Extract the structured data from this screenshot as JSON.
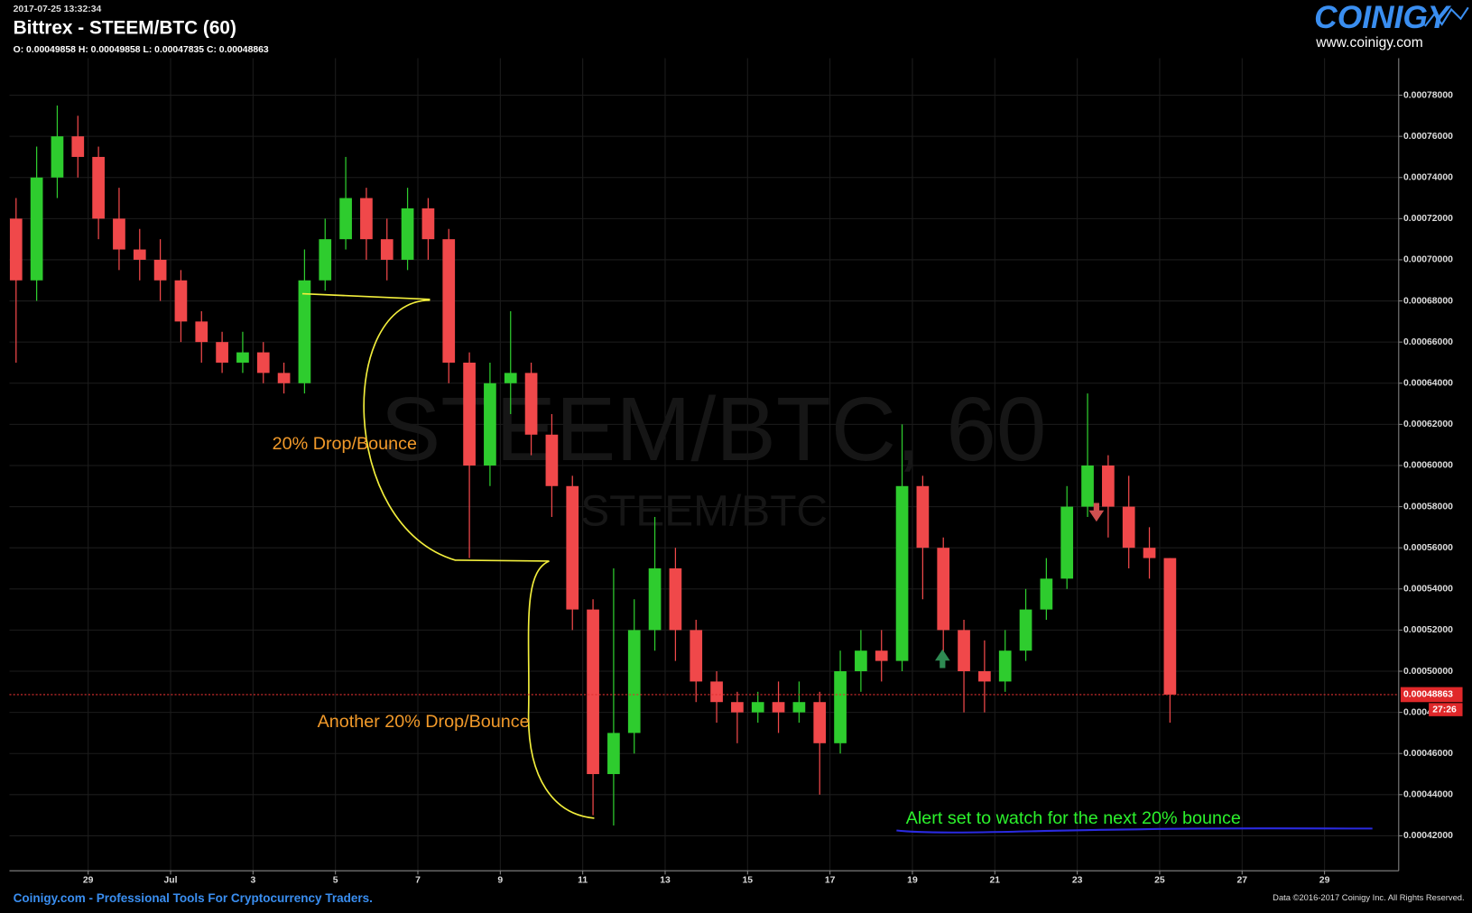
{
  "header": {
    "timestamp": "2017-07-25 13:32:34",
    "title": "Bittrex - STEEM/BTC (60)",
    "ohlc": "O: 0.00049858 H: 0.00049858 L: 0.00047835 C: 0.00048863",
    "logo": "COINIGY",
    "logo_url": "www.coinigy.com"
  },
  "watermark": {
    "main": "STEEM/BTC, 60",
    "sub": "STEEM/BTC"
  },
  "annotations": [
    "20% Drop/Bounce",
    "Another 20% Drop/Bounce",
    "Alert set to watch for the next 20% bounce"
  ],
  "footer": {
    "left": "Coinigy.com - Professional Tools For Cryptocurrency Traders.",
    "right": "Data ©2016-2017 Coinigy Inc. All Rights Reserved."
  },
  "chart_data": {
    "type": "candlestick",
    "color_up": "#2ecc2e",
    "color_down": "#f0484a",
    "x": [
      27.25,
      27.75,
      28.25,
      28.75,
      29.25,
      29.75,
      30.25,
      30.75,
      31.25,
      31.75,
      32.25,
      32.75,
      33.25,
      33.75,
      34.25,
      34.75,
      35.25,
      35.75,
      36.25,
      36.75,
      37.25,
      37.75,
      38.25,
      38.75,
      39.25,
      39.75,
      40.25,
      40.75,
      41.25,
      41.75,
      42.25,
      42.75,
      43.25,
      43.75,
      44.25,
      44.75,
      45.25,
      45.75,
      46.25,
      46.75,
      47.25,
      47.75,
      48.25,
      48.75,
      49.25,
      49.75,
      50.25,
      50.75,
      51.25,
      51.75,
      52.25,
      52.75,
      53.25,
      53.75,
      54.25,
      54.75,
      55.25
    ],
    "open": [
      0.00072,
      0.00069,
      0.00074,
      0.00076,
      0.00075,
      0.00072,
      0.000705,
      0.0007,
      0.00069,
      0.00067,
      0.00066,
      0.00065,
      0.000655,
      0.000645,
      0.00064,
      0.00069,
      0.00071,
      0.00073,
      0.00071,
      0.0007,
      0.000725,
      0.00071,
      0.00065,
      0.0006,
      0.00064,
      0.000645,
      0.000615,
      0.00059,
      0.00053,
      0.00045,
      0.00047,
      0.00052,
      0.00055,
      0.00052,
      0.000495,
      0.000485,
      0.00048,
      0.000485,
      0.00048,
      0.000485,
      0.000465,
      0.0005,
      0.00051,
      0.000505,
      0.00059,
      0.00056,
      0.00052,
      0.0005,
      0.000495,
      0.00051,
      0.00053,
      0.000545,
      0.00058,
      0.0006,
      0.00058,
      0.00056,
      0.000555
    ],
    "high": [
      0.00073,
      0.000755,
      0.000775,
      0.00077,
      0.000755,
      0.000735,
      0.000715,
      0.00071,
      0.000695,
      0.000675,
      0.000665,
      0.000665,
      0.00066,
      0.00065,
      0.000705,
      0.00072,
      0.00075,
      0.000735,
      0.00072,
      0.000735,
      0.00073,
      0.000715,
      0.000655,
      0.00065,
      0.000675,
      0.00065,
      0.000625,
      0.000595,
      0.000535,
      0.00055,
      0.000535,
      0.000575,
      0.00056,
      0.000525,
      0.0005,
      0.00049,
      0.00049,
      0.000495,
      0.000495,
      0.00049,
      0.00051,
      0.00052,
      0.00052,
      0.00062,
      0.000595,
      0.000565,
      0.000525,
      0.000515,
      0.00052,
      0.00054,
      0.000555,
      0.00059,
      0.000635,
      0.000605,
      0.000595,
      0.00057,
      0.000555
    ],
    "low": [
      0.00065,
      0.00068,
      0.00073,
      0.00074,
      0.00071,
      0.000695,
      0.00069,
      0.00068,
      0.00066,
      0.00065,
      0.000645,
      0.000645,
      0.00064,
      0.000635,
      0.000635,
      0.000685,
      0.000705,
      0.0007,
      0.00069,
      0.000695,
      0.0007,
      0.00064,
      0.000555,
      0.00059,
      0.000625,
      0.000605,
      0.000575,
      0.00052,
      0.00043,
      0.000425,
      0.00046,
      0.00051,
      0.000505,
      0.000485,
      0.000475,
      0.000465,
      0.000475,
      0.00047,
      0.000475,
      0.00044,
      0.00046,
      0.00049,
      0.000495,
      0.0005,
      0.000535,
      0.000505,
      0.00048,
      0.00048,
      0.00049,
      0.000505,
      0.000525,
      0.00054,
      0.000575,
      0.000565,
      0.00055,
      0.000545,
      0.000475
    ],
    "close": [
      0.00069,
      0.00074,
      0.00076,
      0.00075,
      0.00072,
      0.000705,
      0.0007,
      0.00069,
      0.00067,
      0.00066,
      0.00065,
      0.000655,
      0.000645,
      0.00064,
      0.00069,
      0.00071,
      0.00073,
      0.00071,
      0.0007,
      0.000725,
      0.00071,
      0.00065,
      0.0006,
      0.00064,
      0.000645,
      0.000615,
      0.00059,
      0.00053,
      0.00045,
      0.00047,
      0.00052,
      0.00055,
      0.00052,
      0.000495,
      0.000485,
      0.00048,
      0.000485,
      0.00048,
      0.000485,
      0.000465,
      0.0005,
      0.00051,
      0.000505,
      0.00059,
      0.00056,
      0.00052,
      0.0005,
      0.000495,
      0.00051,
      0.00053,
      0.000545,
      0.00058,
      0.0006,
      0.00058,
      0.00056,
      0.000555,
      0.00048863
    ],
    "xlim": [
      27.09,
      60.8
    ],
    "xticks": [
      29,
      {
        "value": 31,
        "label": "Jul"
      },
      {
        "value": 33,
        "label": "3"
      },
      {
        "value": 35,
        "label": "5"
      },
      {
        "value": 37,
        "label": "7"
      },
      {
        "value": 39,
        "label": "9"
      },
      {
        "value": 41,
        "label": "11"
      },
      {
        "value": 43,
        "label": "13"
      },
      {
        "value": 45,
        "label": "15"
      },
      {
        "value": 47,
        "label": "17"
      },
      {
        "value": 49,
        "label": "19"
      },
      {
        "value": 51,
        "label": "21"
      },
      {
        "value": 53,
        "label": "23"
      },
      {
        "value": 55,
        "label": "25"
      },
      {
        "value": 57,
        "label": "27"
      },
      {
        "value": 59,
        "label": "29"
      }
    ],
    "ylim": [
      0.000403,
      0.000798
    ],
    "yticks": [
      {
        "value": 0.00042,
        "label": "0.00042000"
      },
      {
        "value": 0.00044,
        "label": "0.00044000"
      },
      {
        "value": 0.00046,
        "label": "0.00046000"
      },
      {
        "value": 0.00048,
        "label": "0.00048000"
      },
      {
        "value": 0.0005,
        "label": "0.00050000"
      },
      {
        "value": 0.00052,
        "label": "0.00052000"
      },
      {
        "value": 0.00054,
        "label": "0.00054000"
      },
      {
        "value": 0.00056,
        "label": "0.00056000"
      },
      {
        "value": 0.00058,
        "label": "0.00058000"
      },
      {
        "value": 0.0006,
        "label": "0.00060000"
      },
      {
        "value": 0.00062,
        "label": "0.00062000"
      },
      {
        "value": 0.00064,
        "label": "0.00064000"
      },
      {
        "value": 0.00066,
        "label": "0.00066000"
      },
      {
        "value": 0.00068,
        "label": "0.00068000"
      },
      {
        "value": 0.0007,
        "label": "0.00070000"
      },
      {
        "value": 0.00072,
        "label": "0.00072000"
      },
      {
        "value": 0.00074,
        "label": "0.00074000"
      },
      {
        "value": 0.00076,
        "label": "0.00076000"
      },
      {
        "value": 0.00078,
        "label": "0.00078000"
      }
    ],
    "grid": true,
    "last_price": 0.00048863,
    "price_timer": "27:26"
  }
}
